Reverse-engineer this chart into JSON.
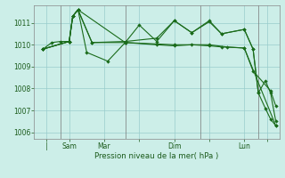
{
  "background_color": "#cceee8",
  "grid_color": "#99cccc",
  "line_color": "#1a6b1a",
  "xlabel": "Pression niveau de la mer( hPa )",
  "ylim": [
    1005.7,
    1011.8
  ],
  "yticks": [
    1006,
    1007,
    1008,
    1009,
    1010,
    1011
  ],
  "xlim": [
    -0.5,
    13.5
  ],
  "xtick_positions": [
    0.2,
    1.5,
    3.5,
    5.5,
    7.5,
    9.5,
    11.5,
    12.8
  ],
  "xtick_labels": [
    "|",
    "Sam",
    "Mar",
    "",
    "Dim",
    "",
    "Lun",
    ""
  ],
  "vline_positions": [
    1.0,
    4.7,
    9.0,
    12.3
  ],
  "series": [
    {
      "x": [
        0,
        1.5,
        1.7,
        2.0,
        2.8,
        4.7,
        6.5,
        7.5,
        8.5,
        9.5,
        10.2,
        11.5,
        12.0,
        13.0,
        13.3
      ],
      "y": [
        1009.8,
        1010.15,
        1011.3,
        1011.6,
        1010.1,
        1010.1,
        1010.0,
        1009.95,
        1010.0,
        1009.95,
        1009.9,
        1009.85,
        1008.8,
        1007.9,
        1007.2
      ]
    },
    {
      "x": [
        0,
        1.5,
        1.7,
        2.0,
        2.8,
        4.7,
        6.5,
        7.5,
        8.5,
        9.5,
        10.2,
        11.5,
        12.0,
        12.3,
        12.7,
        13.0,
        13.3
      ],
      "y": [
        1009.8,
        1010.15,
        1011.3,
        1011.6,
        1010.1,
        1010.15,
        1010.3,
        1011.1,
        1010.55,
        1011.1,
        1010.5,
        1010.7,
        1009.8,
        1007.8,
        1007.1,
        1006.6,
        1006.3
      ]
    },
    {
      "x": [
        0,
        1.5,
        1.7,
        2.0,
        2.5,
        3.7,
        4.7,
        5.5,
        6.5,
        7.5,
        8.5,
        9.5,
        10.2,
        11.5,
        12.0,
        12.3,
        12.7,
        13.0,
        13.3
      ],
      "y": [
        1009.8,
        1010.15,
        1011.3,
        1011.6,
        1009.65,
        1009.25,
        1010.1,
        1010.9,
        1010.15,
        1011.1,
        1010.55,
        1011.05,
        1010.5,
        1010.7,
        1009.8,
        1007.8,
        1008.35,
        1007.8,
        1006.5
      ]
    },
    {
      "x": [
        0,
        0.5,
        1.0,
        1.5,
        1.7,
        2.0,
        4.7,
        7.5,
        9.5,
        10.5,
        11.5,
        13.3
      ],
      "y": [
        1009.8,
        1010.1,
        1010.15,
        1010.15,
        1011.3,
        1011.6,
        1010.1,
        1010.0,
        1010.0,
        1009.9,
        1009.85,
        1006.3
      ]
    }
  ]
}
